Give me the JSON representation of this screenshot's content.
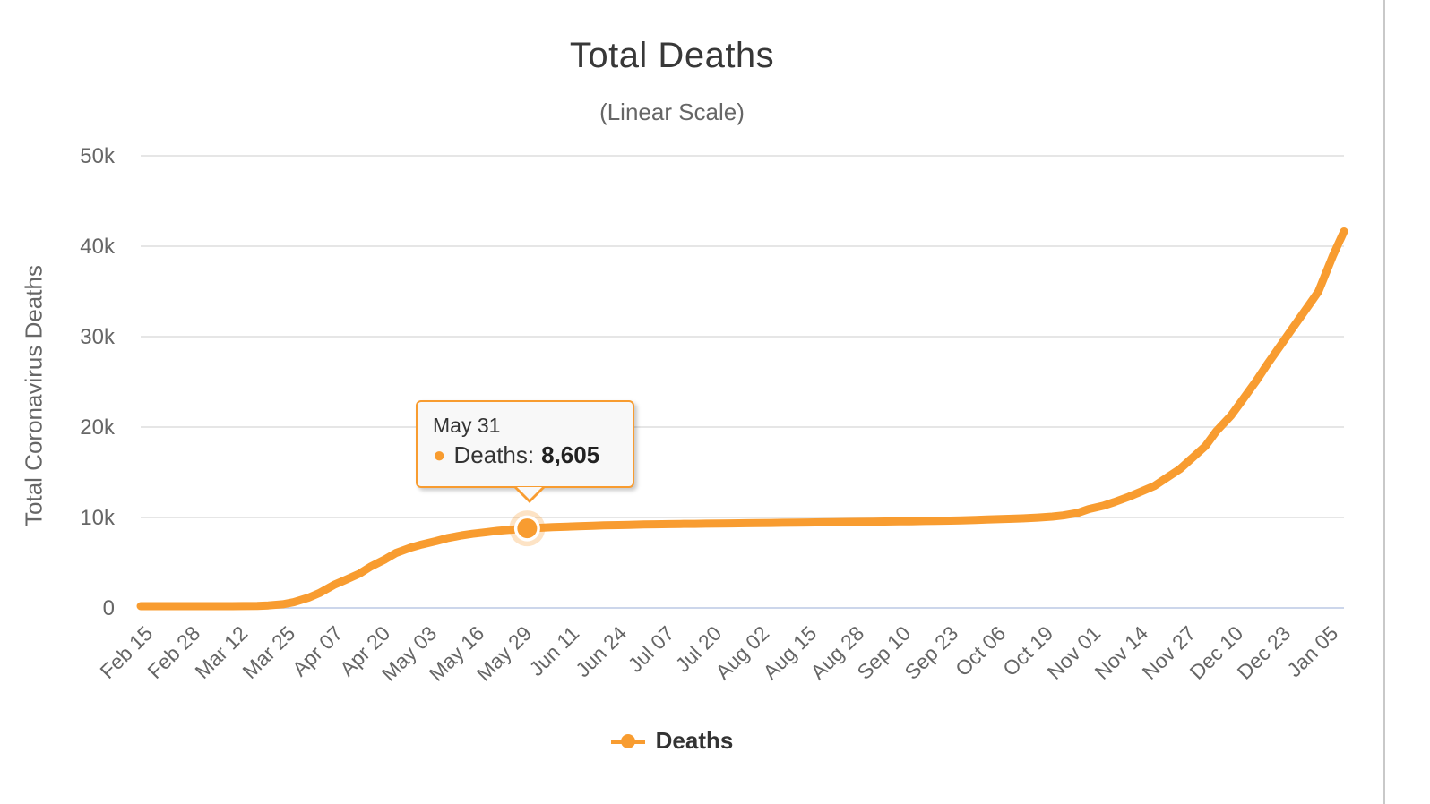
{
  "chart": {
    "title": "Total Deaths",
    "subtitle": "(Linear Scale)",
    "y_axis_title": "Total Coronavirus Deaths",
    "legend": {
      "label": "Deaths"
    },
    "tooltip": {
      "header": "May 31",
      "bullet": "●",
      "series_label": "Deaths:",
      "value": "8,605"
    },
    "colors": {
      "accent": "#F89C30",
      "halo": "rgba(248,156,48,0.28)",
      "gridline": "#E6E6E6",
      "axis_line": "#CCD6EB",
      "label_text": "#666666",
      "title_text": "#383838"
    }
  },
  "chart_data": {
    "type": "line",
    "title": "Total Deaths",
    "subtitle": "(Linear Scale)",
    "xlabel": "",
    "ylabel": "Total Coronavirus Deaths",
    "ylim": [
      0,
      50000
    ],
    "grid": true,
    "legend_position": "bottom",
    "y_tick_labels": [
      "0",
      "10k",
      "20k",
      "30k",
      "40k",
      "50k"
    ],
    "x_tick_labels": [
      "Feb 15",
      "Feb 28",
      "Mar 12",
      "Mar 25",
      "Apr 07",
      "Apr 20",
      "May 03",
      "May 16",
      "May 29",
      "Jun 11",
      "Jun 24",
      "Jul 07",
      "Jul 20",
      "Aug 02",
      "Aug 15",
      "Aug 28",
      "Sep 10",
      "Sep 23",
      "Oct 06",
      "Oct 19",
      "Nov 01",
      "Nov 14",
      "Nov 27",
      "Dec 10",
      "Dec 23",
      "Jan 05"
    ],
    "x_tick_interval_days": 13,
    "x_description": "x values are day offsets from Feb 15; axis spans Feb 15 (day 0) to Jan 10 (day 330)",
    "x_range_days": [
      0,
      330
    ],
    "series": [
      {
        "name": "Deaths",
        "color": "#F89C30",
        "x_days": [
          0,
          7,
          14,
          21,
          25,
          28,
          32,
          35,
          39,
          42,
          46,
          49,
          53,
          56,
          60,
          63,
          67,
          70,
          74,
          77,
          81,
          84,
          88,
          91,
          95,
          98,
          102,
          106,
          110,
          113,
          117,
          120,
          124,
          127,
          131,
          134,
          138,
          141,
          145,
          148,
          152,
          155,
          159,
          162,
          166,
          169,
          173,
          176,
          180,
          183,
          187,
          190,
          194,
          197,
          201,
          204,
          208,
          211,
          215,
          218,
          222,
          225,
          229,
          232,
          236,
          239,
          243,
          246,
          250,
          253,
          257,
          260,
          264,
          267,
          271,
          274,
          278,
          281,
          285,
          288,
          292,
          295,
          299,
          302,
          306,
          309,
          313,
          316,
          320,
          323,
          327,
          330
        ],
        "values": [
          0,
          0,
          0,
          0,
          3,
          9,
          28,
          84,
          206,
          433,
          931,
          1444,
          2349,
          2871,
          3592,
          4352,
          5170,
          5877,
          6467,
          6812,
          7188,
          7510,
          7826,
          8001,
          8193,
          8336,
          8470,
          8605,
          8674,
          8729,
          8793,
          8844,
          8895,
          8928,
          8965,
          8995,
          9032,
          9052,
          9074,
          9088,
          9103,
          9115,
          9135,
          9148,
          9166,
          9180,
          9201,
          9216,
          9236,
          9252,
          9272,
          9286,
          9305,
          9320,
          9340,
          9355,
          9375,
          9390,
          9412,
          9430,
          9456,
          9479,
          9536,
          9571,
          9621,
          9665,
          9727,
          9790,
          9905,
          10032,
          10305,
          10734,
          11096,
          11506,
          12100,
          12600,
          13300,
          14100,
          15160,
          16248,
          17700,
          19342,
          21064,
          22706,
          24938,
          26762,
          29058,
          30797,
          33071,
          34791,
          38795,
          41434
        ]
      }
    ],
    "highlighted_point": {
      "date": "May 31",
      "day": 106,
      "value": 8605,
      "label": "Deaths: 8,605"
    }
  }
}
